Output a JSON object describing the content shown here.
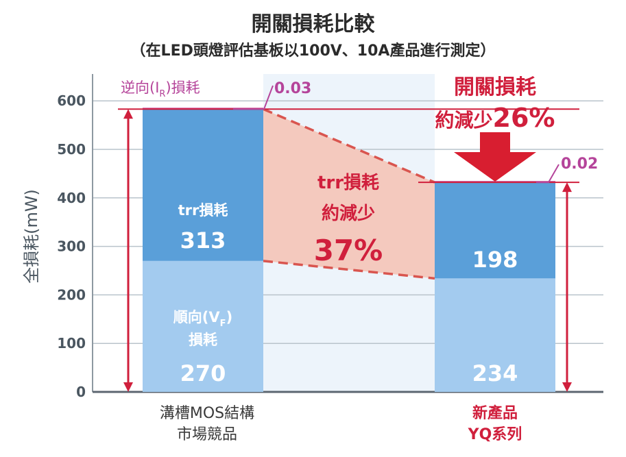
{
  "title": "開關損耗比較",
  "subtitle": "（在LED頭燈評估基板以100V、10A產品進行測定）",
  "chart_data": {
    "type": "bar",
    "stacked": true,
    "ylabel": "全損耗(mW)",
    "ylim": [
      0,
      650
    ],
    "yticks": [
      "0",
      "100",
      "200",
      "300",
      "400",
      "500",
      "600"
    ],
    "grid": true,
    "categories": [
      {
        "lines": [
          "溝槽MOS結構",
          "市場競品"
        ],
        "highlight": false
      },
      {
        "lines": [
          "新產品",
          "YQ系列"
        ],
        "highlight": true
      }
    ],
    "series": [
      {
        "name": "順向(VF)損耗",
        "values": [
          270,
          234
        ],
        "color": "#a3cbef",
        "label_lines": [
          "順向(V",
          "F",
          ")",
          "損耗"
        ]
      },
      {
        "name": "trr損耗",
        "values": [
          313,
          198
        ],
        "color": "#5a9fd9",
        "label_lines": [
          "trr損耗"
        ]
      },
      {
        "name": "逆向(IR)損耗",
        "values": [
          0.03,
          0.02
        ],
        "color": "#c9539c",
        "value_labels": [
          "0.03",
          "0.02"
        ]
      }
    ],
    "ir_label": {
      "prefix": "逆向(I",
      "sub": "R",
      "suffix": ")損耗"
    },
    "annotations": {
      "trr_reduction": {
        "lines": [
          "trr損耗",
          "約減少",
          "37%"
        ]
      },
      "total_reduction": {
        "line1": "開關損耗",
        "line2_prefix": "約減少",
        "line2_value": "26%"
      }
    },
    "colors": {
      "accent_red": "#d01f3c",
      "arrow_red": "#d81e30",
      "pink": "#b5449a",
      "reduction_fill": "#f4c9be",
      "bg_stripe": "#edf4fb",
      "grid": "#b9c3cb"
    }
  }
}
